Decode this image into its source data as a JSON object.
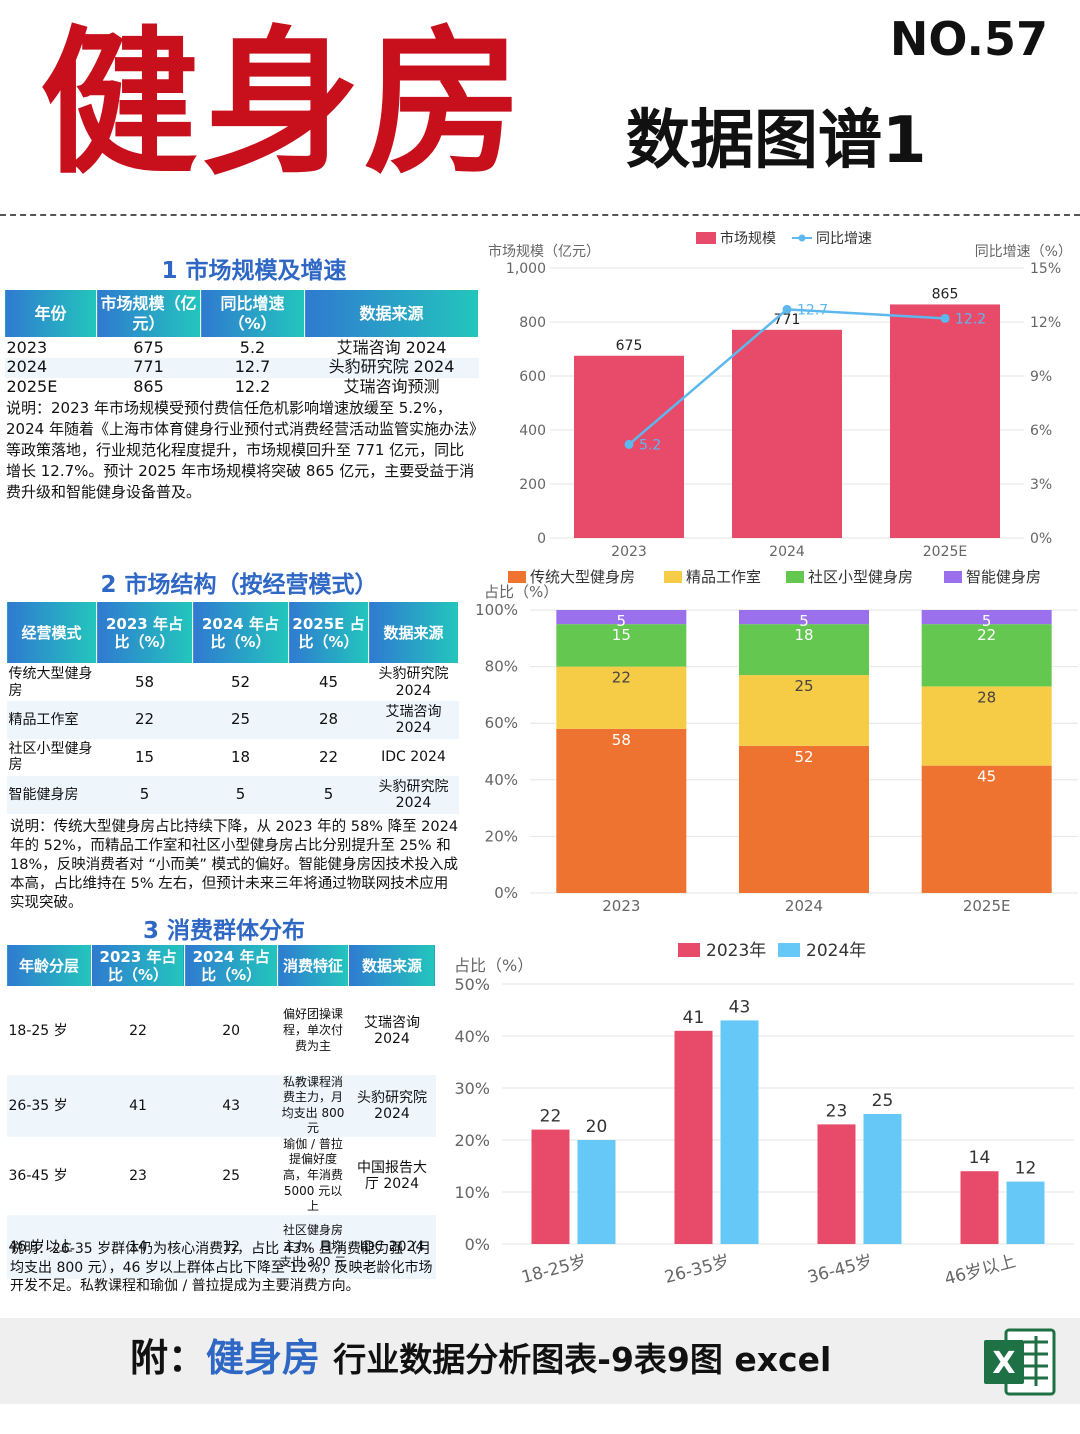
{
  "header": {
    "title": "健身房",
    "subtitle": "数据图谱1",
    "number": "NO.57"
  },
  "section1": {
    "title": "1 市场规模及增速",
    "headers": [
      "年份",
      "市场规模（亿元）",
      "同比增速（%）",
      "数据来源"
    ],
    "rows": [
      [
        "2023",
        "675",
        "5.2",
        "艾瑞咨询 2024"
      ],
      [
        "2024",
        "771",
        "12.7",
        "头豹研究院 2024"
      ],
      [
        "2025E",
        "865",
        "12.2",
        "艾瑞咨询预测"
      ]
    ],
    "note": "说明：2023 年市场规模受预付费信任危机影响增速放缓至 5.2%，2024 年随着《上海市体育健身行业预付式消费经营活动监管实施办法》等政策落地，行业规范化程度提升，市场规模回升至 771 亿元，同比增长 12.7%。预计 2025 年市场规模将突破 865 亿元，主要受益于消费升级和智能健身设备普及。"
  },
  "section2": {
    "title": "2 市场结构（按经营模式）",
    "headers": [
      "经营模式",
      "2023 年占比（%）",
      "2024 年占比（%）",
      "2025E 占比（%）",
      "数据来源"
    ],
    "rows": [
      [
        "传统大型健身房",
        "58",
        "52",
        "45",
        "头豹研究院 2024"
      ],
      [
        "精品工作室",
        "22",
        "25",
        "28",
        "艾瑞咨询 2024"
      ],
      [
        "社区小型健身房",
        "15",
        "18",
        "22",
        "IDC 2024"
      ],
      [
        "智能健身房",
        "5",
        "5",
        "5",
        "头豹研究院 2024"
      ]
    ],
    "note": "说明：传统大型健身房占比持续下降，从 2023 年的 58% 降至 2024 年的 52%，而精品工作室和社区小型健身房占比分别提升至 25% 和 18%，反映消费者对 “小而美” 模式的偏好。智能健身房因技术投入成本高，占比维持在 5% 左右，但预计未来三年将通过物联网技术应用实现突破。"
  },
  "section3": {
    "title": "3 消费群体分布",
    "headers": [
      "年龄分层",
      "2023 年占比（%）",
      "2024 年占比（%）",
      "消费特征",
      "数据来源"
    ],
    "rows": [
      [
        "18-25 岁",
        "22",
        "20",
        "偏好团操课程，单次付费为主",
        "艾瑞咨询 2024"
      ],
      [
        "26-35 岁",
        "41",
        "43",
        "私教课程消费主力，月均支出 800 元",
        "头豹研究院 2024"
      ],
      [
        "36-45 岁",
        "23",
        "25",
        "瑜伽 / 普拉提偏好度高，年消费 5000 元以上",
        "中国报告大厅 2024"
      ],
      [
        "46 岁以上",
        "14",
        "12",
        "社区健身房主力，月均支出 300 元",
        "IDC 2024"
      ]
    ],
    "note": "说明：26-35 岁群体仍为核心消费力，占比 43% 且消费能力强（月均支出 800 元），46 岁以上群体占比下降至 12%，反映老龄化市场开发不足。私教课程和瑜伽 / 普拉提成为主要消费方向。"
  },
  "chart_data": [
    {
      "type": "bar",
      "categories": [
        "2023",
        "2024",
        "2025E"
      ],
      "series": [
        {
          "name": "市场规模",
          "type": "bar",
          "values": [
            675,
            771,
            865
          ],
          "axis": "left",
          "color": "#e84a6a"
        },
        {
          "name": "同比增速",
          "type": "line",
          "values": [
            5.2,
            12.7,
            12.2
          ],
          "axis": "right",
          "color": "#5cb8ef"
        }
      ],
      "ylabel": "市场规模（亿元）",
      "y2label": "同比增速（%）",
      "ylim": [
        0,
        1000
      ],
      "y2lim": [
        0,
        15
      ],
      "yticks": [
        "0",
        "200",
        "400",
        "600",
        "800",
        "1,000"
      ],
      "y2ticks": [
        "0%",
        "3%",
        "6%",
        "9%",
        "12%",
        "15%"
      ],
      "grid": true,
      "legend": "top-center"
    },
    {
      "type": "bar",
      "stacked": true,
      "categories": [
        "2023",
        "2024",
        "2025E"
      ],
      "series": [
        {
          "name": "传统大型健身房",
          "values": [
            58,
            52,
            45
          ],
          "color": "#ee7230"
        },
        {
          "name": "精品工作室",
          "values": [
            22,
            25,
            28
          ],
          "color": "#f6cb45"
        },
        {
          "name": "社区小型健身房",
          "values": [
            15,
            18,
            22
          ],
          "color": "#64c850"
        },
        {
          "name": "智能健身房",
          "values": [
            5,
            5,
            5
          ],
          "color": "#9b70ec"
        }
      ],
      "ylabel": "占比（%）",
      "ylim": [
        0,
        100
      ],
      "yticks": [
        "0%",
        "20%",
        "40%",
        "60%",
        "80%",
        "100%"
      ],
      "grid": true,
      "legend": "top"
    },
    {
      "type": "bar",
      "categories": [
        "18-25岁",
        "26-35岁",
        "36-45岁",
        "46岁以上"
      ],
      "series": [
        {
          "name": "2023年",
          "values": [
            22,
            41,
            23,
            14
          ],
          "color": "#e84a6a"
        },
        {
          "name": "2024年",
          "values": [
            20,
            43,
            25,
            12
          ],
          "color": "#66c8f6"
        }
      ],
      "ylabel": "占比（%）",
      "ylim": [
        0,
        50
      ],
      "yticks": [
        "0%",
        "10%",
        "20%",
        "30%",
        "40%",
        "50%"
      ],
      "grid": true,
      "legend": "top-center"
    }
  ],
  "footer": {
    "prefix": "附：",
    "keyword": "健身房",
    "text": "行业数据分析图表-9表9图 excel",
    "icon": "excel-icon",
    "icon_letter": "X"
  }
}
